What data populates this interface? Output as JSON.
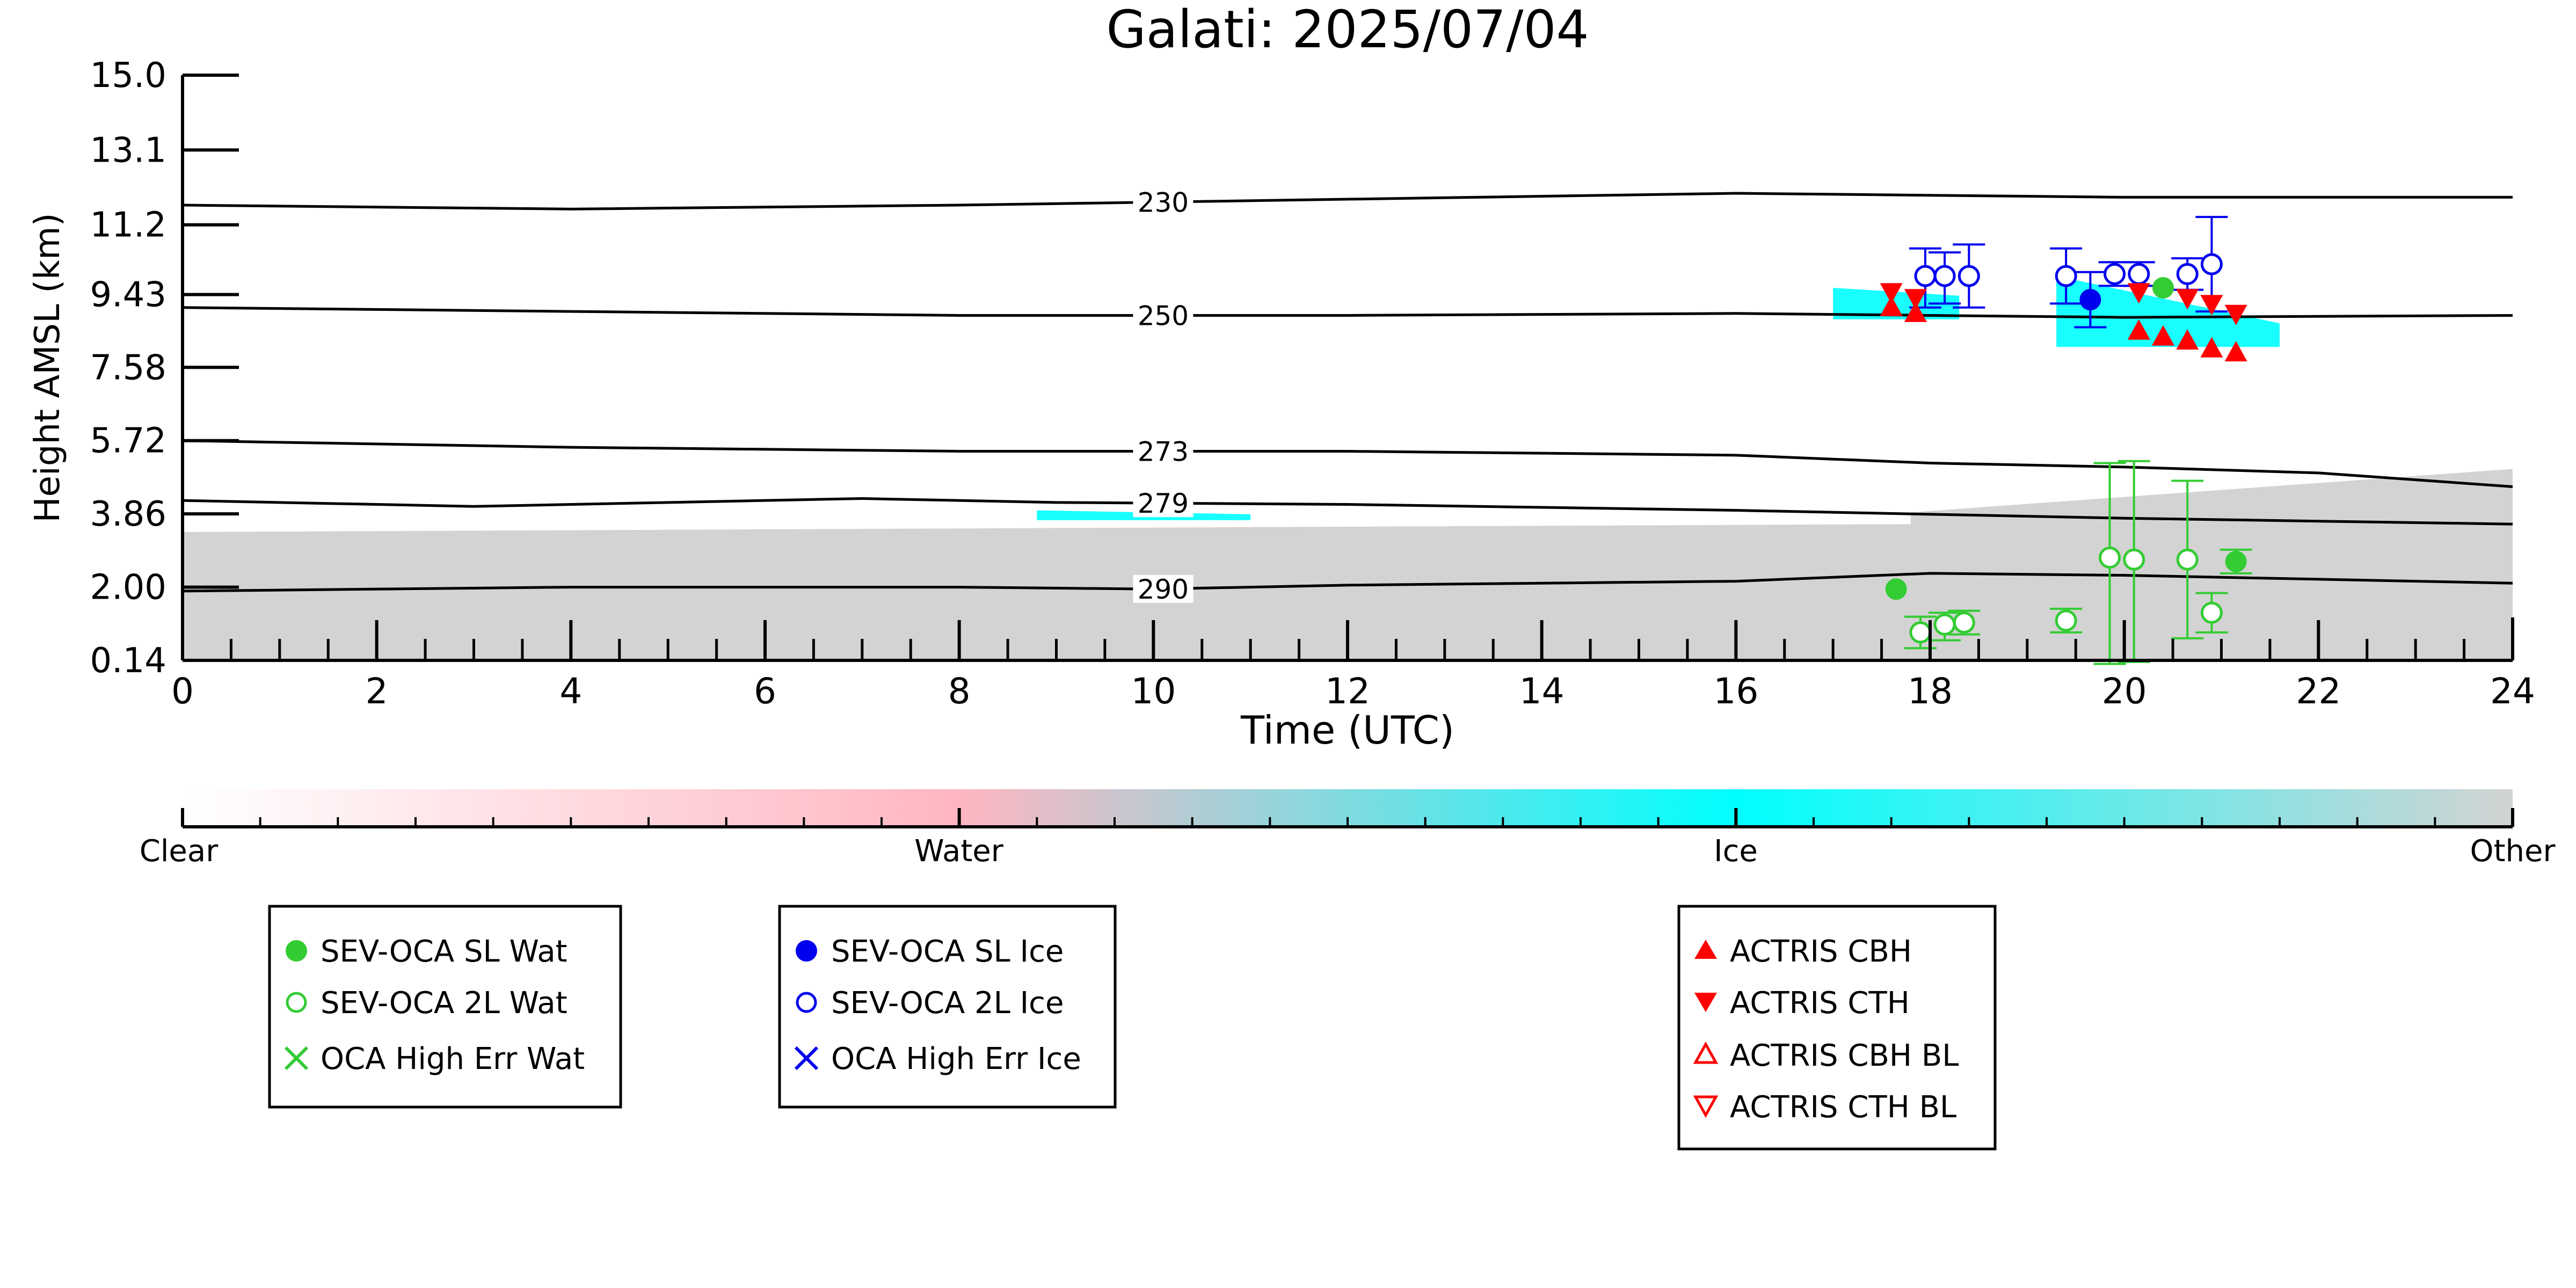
{
  "chart_data": {
    "type": "scatter",
    "title": "Galati: 2025/07/04",
    "xlabel": "Time (UTC)",
    "ylabel": "Height AMSL (km)",
    "xlim": [
      0,
      24
    ],
    "ylim": [
      0.14,
      15.0
    ],
    "x_ticks": [
      "0",
      "2",
      "4",
      "6",
      "8",
      "10",
      "12",
      "14",
      "16",
      "18",
      "20",
      "22",
      "24"
    ],
    "y_ticks": [
      "0.14",
      "2.00",
      "3.86",
      "5.72",
      "7.58",
      "9.43",
      "11.2",
      "13.1",
      "15.0"
    ],
    "isotherms": [
      {
        "label": "230",
        "points": [
          [
            0,
            11.7
          ],
          [
            4,
            11.6
          ],
          [
            8,
            11.7
          ],
          [
            12,
            11.85
          ],
          [
            16,
            12.0
          ],
          [
            20,
            11.9
          ],
          [
            24,
            11.9
          ]
        ]
      },
      {
        "label": "250",
        "points": [
          [
            0,
            9.1
          ],
          [
            4,
            9.0
          ],
          [
            8,
            8.9
          ],
          [
            12,
            8.9
          ],
          [
            16,
            8.95
          ],
          [
            18,
            8.9
          ],
          [
            20,
            8.85
          ],
          [
            24,
            8.9
          ]
        ]
      },
      {
        "label": "273",
        "points": [
          [
            0,
            5.72
          ],
          [
            4,
            5.55
          ],
          [
            8,
            5.45
          ],
          [
            12,
            5.45
          ],
          [
            16,
            5.35
          ],
          [
            18,
            5.15
          ],
          [
            20,
            5.05
          ],
          [
            22,
            4.9
          ],
          [
            24,
            4.55
          ]
        ]
      },
      {
        "label": "279",
        "points": [
          [
            0,
            4.2
          ],
          [
            3,
            4.05
          ],
          [
            7,
            4.25
          ],
          [
            9,
            4.15
          ],
          [
            12,
            4.1
          ],
          [
            16,
            3.95
          ],
          [
            18,
            3.85
          ],
          [
            20,
            3.75
          ],
          [
            24,
            3.6
          ]
        ]
      },
      {
        "label": "290",
        "points": [
          [
            0,
            1.9
          ],
          [
            4,
            2.0
          ],
          [
            8,
            2.0
          ],
          [
            10,
            1.95
          ],
          [
            12,
            2.05
          ],
          [
            16,
            2.15
          ],
          [
            18,
            2.35
          ],
          [
            20,
            2.3
          ],
          [
            24,
            2.1
          ]
        ]
      }
    ],
    "series": [
      {
        "name": "SEV-OCA SL Wat",
        "color": "#33cc33",
        "marker": "filled-circle",
        "points": [
          [
            17.65,
            1.95
          ],
          [
            20.4,
            9.6
          ],
          [
            21.15,
            2.65
          ]
        ],
        "err": [
          [
            0,
            0
          ],
          [
            0,
            0
          ],
          [
            0.3,
            0.3
          ]
        ]
      },
      {
        "name": "SEV-OCA 2L Wat",
        "color": "#33cc33",
        "marker": "open-circle",
        "points": [
          [
            17.9,
            0.85
          ],
          [
            18.15,
            1.05
          ],
          [
            18.35,
            1.1
          ],
          [
            19.4,
            1.15
          ],
          [
            19.85,
            2.75
          ],
          [
            20.1,
            2.7
          ],
          [
            20.65,
            2.7
          ],
          [
            20.9,
            1.35
          ]
        ],
        "err": [
          [
            0.4,
            0.4
          ],
          [
            0.4,
            0.3
          ],
          [
            0.3,
            0.3
          ],
          [
            0.3,
            0.3
          ],
          [
            2.7,
            2.4
          ],
          [
            2.6,
            2.5
          ],
          [
            2.0,
            2.0
          ],
          [
            0.5,
            0.5
          ]
        ]
      },
      {
        "name": "OCA High Err Wat",
        "color": "#33cc33",
        "marker": "cross",
        "points": []
      },
      {
        "name": "SEV-OCA SL Ice",
        "color": "#0000ee",
        "marker": "filled-circle",
        "points": [
          [
            19.65,
            9.3
          ]
        ],
        "err": [
          [
            0.7,
            0.7
          ]
        ]
      },
      {
        "name": "SEV-OCA 2L Ice",
        "color": "#0000ee",
        "marker": "open-circle",
        "points": [
          [
            17.95,
            9.9
          ],
          [
            18.15,
            9.9
          ],
          [
            18.4,
            9.9
          ],
          [
            19.4,
            9.9
          ],
          [
            19.9,
            9.95
          ],
          [
            20.15,
            9.95
          ],
          [
            20.65,
            9.95
          ],
          [
            20.9,
            10.2
          ]
        ],
        "err": [
          [
            0.8,
            0.7
          ],
          [
            0.7,
            0.6
          ],
          [
            0.8,
            0.8
          ],
          [
            0.7,
            0.7
          ],
          [
            0.3,
            0.3
          ],
          [
            0.3,
            0.3
          ],
          [
            0.4,
            0.4
          ],
          [
            1.2,
            1.2
          ]
        ]
      },
      {
        "name": "OCA High Err Ice",
        "color": "#0000ee",
        "marker": "cross",
        "points": []
      },
      {
        "name": "ACTRIS CBH",
        "color": "#ff0000",
        "marker": "filled-triangle-up",
        "points": [
          [
            17.6,
            9.1
          ],
          [
            17.85,
            8.95
          ],
          [
            20.15,
            8.5
          ],
          [
            20.4,
            8.35
          ],
          [
            20.65,
            8.25
          ],
          [
            20.9,
            8.05
          ],
          [
            21.15,
            7.95
          ]
        ]
      },
      {
        "name": "ACTRIS CTH",
        "color": "#ff0000",
        "marker": "filled-triangle-down",
        "points": [
          [
            17.6,
            9.5
          ],
          [
            17.85,
            9.35
          ],
          [
            20.15,
            9.5
          ],
          [
            20.65,
            9.35
          ],
          [
            20.9,
            9.2
          ],
          [
            21.15,
            8.95
          ]
        ]
      },
      {
        "name": "ACTRIS CBH BL",
        "color": "#ff0000",
        "marker": "open-triangle-up",
        "points": []
      },
      {
        "name": "ACTRIS CTH BL",
        "color": "#ff0000",
        "marker": "open-triangle-down",
        "points": []
      }
    ],
    "cloud_fields": [
      {
        "type": "Other",
        "x0": 0,
        "x1": 17.8,
        "y_top_start": 3.4,
        "y_top_end": 3.6,
        "y_bottom": 0.14
      },
      {
        "type": "Other",
        "x0": 17.8,
        "x1": 24,
        "y_top_start": 3.9,
        "y_top_end": 5.0,
        "y_bottom": 0.14
      },
      {
        "type": "Ice",
        "x0": 17.0,
        "x1": 18.3,
        "y_top_start": 9.6,
        "y_top_end": 9.4,
        "y_bottom": 8.8
      },
      {
        "type": "Ice",
        "x0": 19.3,
        "x1": 21.6,
        "y_top_start": 9.9,
        "y_top_end": 8.7,
        "y_bottom": 8.1
      },
      {
        "type": "Ice",
        "x0": 8.8,
        "x1": 11.0,
        "y_top_start": 3.95,
        "y_top_end": 3.85,
        "y_bottom": 3.7
      }
    ],
    "colorbar": {
      "labels": [
        "Clear",
        "Water",
        "Ice",
        "Other"
      ],
      "colors": [
        "#ffffff",
        "#ffb6c1",
        "#00ffff",
        "#d3d3d3"
      ]
    },
    "legend_placement": "bottom"
  },
  "legends": {
    "wat": [
      "SEV-OCA SL Wat",
      "SEV-OCA 2L Wat",
      "OCA High Err Wat"
    ],
    "ice": [
      "SEV-OCA SL Ice",
      "SEV-OCA 2L Ice",
      "OCA High Err Ice"
    ],
    "actris": [
      "ACTRIS CBH",
      "ACTRIS CTH",
      "ACTRIS CBH BL",
      "ACTRIS CTH BL"
    ]
  }
}
